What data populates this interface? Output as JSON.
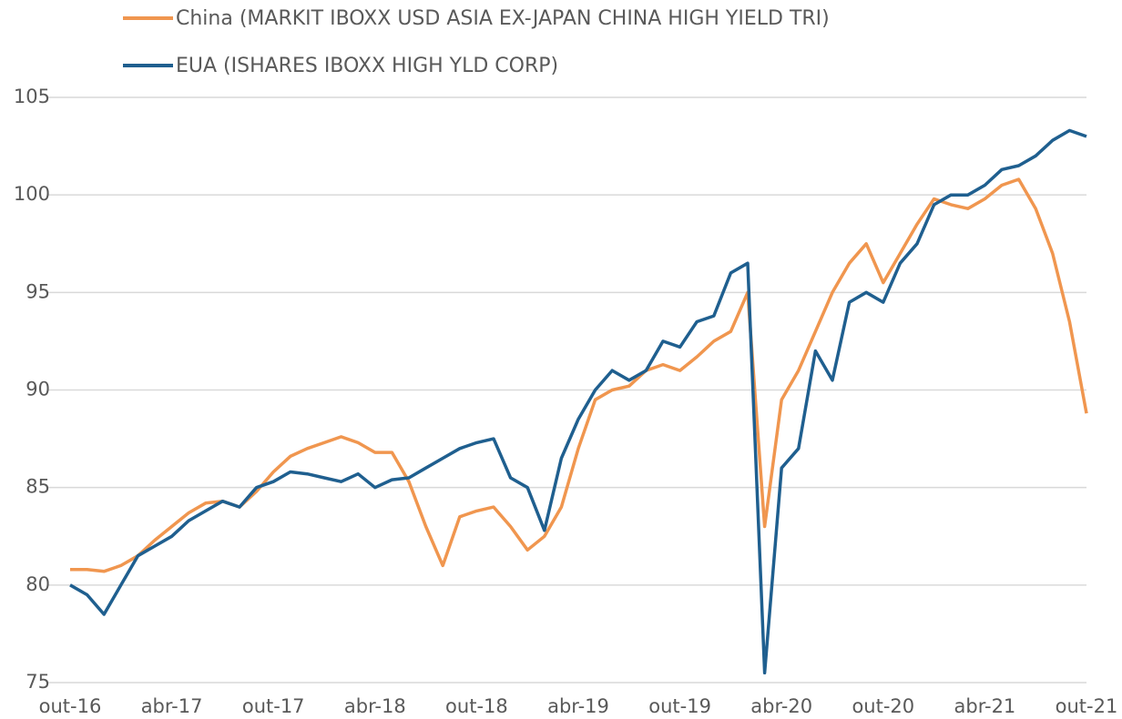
{
  "chart_data": {
    "type": "line",
    "x": [
      "2016-10",
      "2016-11",
      "2016-12",
      "2017-01",
      "2017-02",
      "2017-03",
      "2017-04",
      "2017-05",
      "2017-06",
      "2017-07",
      "2017-08",
      "2017-09",
      "2017-10",
      "2017-11",
      "2017-12",
      "2018-01",
      "2018-02",
      "2018-03",
      "2018-04",
      "2018-05",
      "2018-06",
      "2018-07",
      "2018-08",
      "2018-09",
      "2018-10",
      "2018-11",
      "2018-12",
      "2019-01",
      "2019-02",
      "2019-03",
      "2019-04",
      "2019-05",
      "2019-06",
      "2019-07",
      "2019-08",
      "2019-09",
      "2019-10",
      "2019-11",
      "2019-12",
      "2020-01",
      "2020-02",
      "2020-03",
      "2020-04",
      "2020-05",
      "2020-06",
      "2020-07",
      "2020-08",
      "2020-09",
      "2020-10",
      "2020-11",
      "2020-12",
      "2021-01",
      "2021-02",
      "2021-03",
      "2021-04",
      "2021-05",
      "2021-06",
      "2021-07",
      "2021-08",
      "2021-09",
      "2021-10"
    ],
    "series": [
      {
        "name": "China (MARKIT IBOXX USD ASIA EX-JAPAN CHINA HIGH YIELD TRI)",
        "color": "#f0964f",
        "values": [
          80.8,
          80.8,
          80.7,
          81.0,
          81.5,
          82.3,
          83.0,
          83.7,
          84.2,
          84.3,
          84.0,
          84.8,
          85.8,
          86.6,
          87.0,
          87.3,
          87.6,
          87.3,
          86.8,
          86.8,
          85.3,
          83.0,
          81.0,
          83.5,
          83.8,
          84.0,
          83.0,
          81.8,
          82.5,
          84.0,
          87.0,
          89.5,
          90.0,
          90.2,
          91.0,
          91.3,
          91.0,
          91.7,
          92.5,
          93.0,
          95.0,
          83.0,
          89.5,
          91.0,
          93.0,
          95.0,
          96.5,
          97.5,
          95.5,
          97.0,
          98.5,
          99.8,
          99.5,
          99.3,
          99.8,
          100.5,
          100.8,
          99.3,
          97.0,
          93.5,
          88.8
        ]
      },
      {
        "name": "EUA (ISHARES IBOXX HIGH YLD CORP)",
        "color": "#1f5f8f",
        "values": [
          80.0,
          79.5,
          78.5,
          80.0,
          81.5,
          82.0,
          82.5,
          83.3,
          83.8,
          84.3,
          84.0,
          85.0,
          85.3,
          85.8,
          85.7,
          85.5,
          85.3,
          85.7,
          85.0,
          85.4,
          85.5,
          86.0,
          86.5,
          87.0,
          87.3,
          87.5,
          85.5,
          85.0,
          82.8,
          86.5,
          88.5,
          90.0,
          91.0,
          90.5,
          91.0,
          92.5,
          92.2,
          93.5,
          93.8,
          96.0,
          96.5,
          75.5,
          86.0,
          87.0,
          92.0,
          90.5,
          94.5,
          95.0,
          94.5,
          96.5,
          97.5,
          99.5,
          100.0,
          100.0,
          100.5,
          101.3,
          101.5,
          102.0,
          102.8,
          103.3,
          103.0
        ]
      }
    ],
    "xlim": [
      "2016-10",
      "2021-10"
    ],
    "xticks": [
      {
        "value": "2016-10",
        "label": "out-16"
      },
      {
        "value": "2017-04",
        "label": "abr-17"
      },
      {
        "value": "2017-10",
        "label": "out-17"
      },
      {
        "value": "2018-04",
        "label": "abr-18"
      },
      {
        "value": "2018-10",
        "label": "out-18"
      },
      {
        "value": "2019-04",
        "label": "abr-19"
      },
      {
        "value": "2019-10",
        "label": "out-19"
      },
      {
        "value": "2020-04",
        "label": "abr-20"
      },
      {
        "value": "2020-10",
        "label": "out-20"
      },
      {
        "value": "2021-04",
        "label": "abr-21"
      },
      {
        "value": "2021-10",
        "label": "out-21"
      }
    ],
    "ylim": [
      75,
      105
    ],
    "yticks": [
      75,
      80,
      85,
      90,
      95,
      100,
      105
    ],
    "grid": true
  }
}
